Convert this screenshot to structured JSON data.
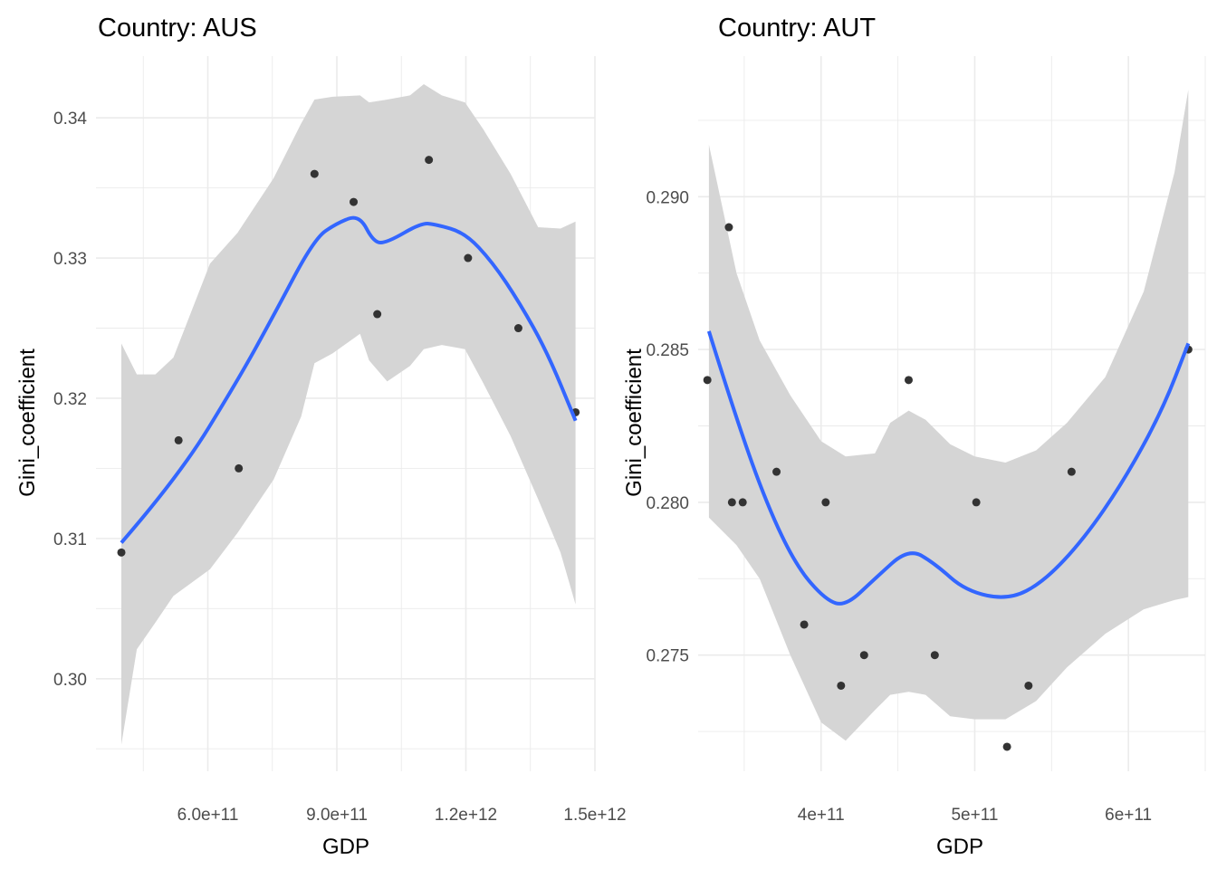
{
  "chart_data": [
    {
      "type": "scatter",
      "title": "Country: AUS",
      "xlabel": "GDP",
      "ylabel": "Gini_coefficient",
      "xlim": [
        340000000000.0,
        1500000000000.0
      ],
      "ylim": [
        0.2934,
        0.3444
      ],
      "xticks": [
        600000000000.0,
        900000000000.0,
        1200000000000.0,
        1500000000000.0
      ],
      "xtick_labels": [
        "6.0e+11",
        "9.0e+11",
        "1.2e+12",
        "1.5e+12"
      ],
      "yticks": [
        0.3,
        0.31,
        0.32,
        0.33,
        0.34
      ],
      "ytick_labels": [
        "0.30",
        "0.31",
        "0.32",
        "0.33",
        "0.34"
      ],
      "grid": true,
      "points": {
        "x": [
          399000000000.0,
          532000000000.0,
          672000000000.0,
          848000000000.0,
          939000000000.0,
          994000000000.0,
          1114000000000.0,
          1205000000000.0,
          1322000000000.0,
          1455000000000.0
        ],
        "y": [
          0.309,
          0.317,
          0.315,
          0.336,
          0.334,
          0.326,
          0.337,
          0.33,
          0.325,
          0.319
        ]
      },
      "smooth": {
        "x": [
          399000000000.0,
          532000000000.0,
          672000000000.0,
          753000000000.0,
          848000000000.0,
          901000000000.0,
          952000000000.0,
          986000000000.0,
          1017000000000.0,
          1096000000000.0,
          1130000000000.0,
          1198000000000.0,
          1262000000000.0,
          1325000000000.0,
          1389000000000.0,
          1455000000000.0
        ],
        "y": [
          0.3097,
          0.3144,
          0.3214,
          0.3259,
          0.3314,
          0.3325,
          0.3331,
          0.3311,
          0.3311,
          0.3325,
          0.3324,
          0.3318,
          0.3297,
          0.3268,
          0.3233,
          0.3184
        ]
      },
      "ribbon": {
        "x": [
          399000000000.0,
          435000000000.0,
          478000000000.0,
          520000000000.0,
          605000000000.0,
          669000000000.0,
          753000000000.0,
          817000000000.0,
          848000000000.0,
          890000000000.0,
          954000000000.0,
          975000000000.0,
          1017000000000.0,
          1070000000000.0,
          1102000000000.0,
          1144000000000.0,
          1198000000000.0,
          1240000000000.0,
          1304000000000.0,
          1368000000000.0,
          1420000000000.0,
          1455000000000.0
        ],
        "upper": [
          0.3239,
          0.3217,
          0.3217,
          0.3229,
          0.3296,
          0.3318,
          0.3357,
          0.3396,
          0.3413,
          0.3415,
          0.3416,
          0.3411,
          0.3413,
          0.3416,
          0.3424,
          0.3416,
          0.3411,
          0.3392,
          0.336,
          0.3322,
          0.3321,
          0.3326
        ],
        "lower": [
          0.2953,
          0.3021,
          0.304,
          0.3059,
          0.3078,
          0.3104,
          0.3142,
          0.3187,
          0.3225,
          0.3232,
          0.3246,
          0.3227,
          0.3212,
          0.3223,
          0.3235,
          0.3238,
          0.3235,
          0.3211,
          0.3173,
          0.3128,
          0.309,
          0.3053
        ]
      }
    },
    {
      "type": "scatter",
      "title": "Country: AUT",
      "xlabel": "GDP",
      "ylabel": "Gini_coefficient",
      "xlim": [
        320000000000.0,
        650000000000.0
      ],
      "ylim": [
        0.2712,
        0.2946
      ],
      "xticks": [
        400000000000.0,
        500000000000.0,
        600000000000.0
      ],
      "xtick_labels": [
        "4e+11",
        "5e+11",
        "6e+11"
      ],
      "yticks": [
        0.275,
        0.28,
        0.285,
        0.29
      ],
      "ytick_labels": [
        "0.275",
        "0.280",
        "0.285",
        "0.290"
      ],
      "grid": true,
      "points": {
        "x": [
          326000000000.0,
          340000000000.0,
          342000000000.0,
          349000000000.0,
          371000000000.0,
          389000000000.0,
          403000000000.0,
          413000000000.0,
          428000000000.0,
          457000000000.0,
          474000000000.0,
          501000000000.0,
          521000000000.0,
          535000000000.0,
          563000000000.0,
          639000000000.0
        ],
        "y": [
          0.284,
          0.289,
          0.28,
          0.28,
          0.281,
          0.276,
          0.28,
          0.274,
          0.275,
          0.284,
          0.275,
          0.28,
          0.272,
          0.274,
          0.281,
          0.285
        ]
      },
      "smooth": {
        "x": [
          327000000000.0,
          345000000000.0,
          365000000000.0,
          384000000000.0,
          403000000000.0,
          416000000000.0,
          435000000000.0,
          457000000000.0,
          474000000000.0,
          494000000000.0,
          522000000000.0,
          545000000000.0,
          571000000000.0,
          597000000000.0,
          622000000000.0,
          639000000000.0
        ],
        "y": [
          0.2856,
          0.2827,
          0.2799,
          0.2779,
          0.2768,
          0.2766,
          0.2775,
          0.2785,
          0.278,
          0.2771,
          0.2768,
          0.2774,
          0.2788,
          0.2807,
          0.283,
          0.2852
        ]
      },
      "ribbon": {
        "x": [
          327000000000.0,
          345000000000.0,
          360000000000.0,
          380000000000.0,
          400000000000.0,
          416000000000.0,
          435000000000.0,
          445000000000.0,
          457000000000.0,
          468000000000.0,
          484000000000.0,
          500000000000.0,
          520000000000.0,
          540000000000.0,
          560000000000.0,
          585000000000.0,
          610000000000.0,
          630000000000.0,
          639000000000.0
        ],
        "upper": [
          0.2917,
          0.2875,
          0.2853,
          0.2835,
          0.282,
          0.2815,
          0.2816,
          0.2826,
          0.283,
          0.2827,
          0.2819,
          0.2815,
          0.2813,
          0.2817,
          0.2826,
          0.2841,
          0.2869,
          0.2908,
          0.2935
        ],
        "lower": [
          0.2795,
          0.2786,
          0.2775,
          0.275,
          0.2728,
          0.2722,
          0.2732,
          0.2737,
          0.2738,
          0.2737,
          0.273,
          0.2729,
          0.2729,
          0.2735,
          0.2746,
          0.2757,
          0.2765,
          0.2768,
          0.2769
        ]
      }
    }
  ],
  "colors": {
    "points": "#333333",
    "smooth": "#3366ff",
    "ribbon": "#d5d5d5",
    "grid": "#ebebeb"
  }
}
